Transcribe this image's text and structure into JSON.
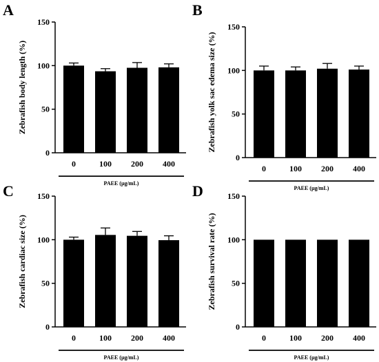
{
  "chart_data": [
    {
      "type": "bar",
      "panel_label": "A",
      "ylabel": "Zebrafish body length  (%)",
      "xlabel": "PAEE (µg/mL)",
      "categories": [
        "0",
        "100",
        "200",
        "400"
      ],
      "values": [
        100,
        93.5,
        97.5,
        98
      ],
      "errors": [
        3,
        3,
        6,
        4
      ],
      "ylim": [
        0,
        150
      ],
      "yticks": [
        0,
        50,
        100,
        150
      ],
      "colors": {
        "bar": "#000000"
      }
    },
    {
      "type": "bar",
      "panel_label": "B",
      "ylabel": "Zebrafish yolk sac edema size  (%)",
      "xlabel": "PAEE (µg/mL)",
      "categories": [
        "0",
        "100",
        "200",
        "400"
      ],
      "values": [
        100,
        100,
        102,
        101
      ],
      "errors": [
        5,
        4,
        6,
        4
      ],
      "ylim": [
        0,
        150
      ],
      "yticks": [
        0,
        50,
        100,
        150
      ],
      "colors": {
        "bar": "#000000"
      }
    },
    {
      "type": "bar",
      "panel_label": "C",
      "ylabel": "Zebrafish cardiac size (%)",
      "xlabel": "PAEE (µg/mL)",
      "categories": [
        "0",
        "100",
        "200",
        "400"
      ],
      "values": [
        100,
        105.5,
        104.5,
        99.5
      ],
      "errors": [
        3,
        8,
        5,
        5
      ],
      "ylim": [
        0,
        150
      ],
      "yticks": [
        0,
        50,
        100,
        150
      ],
      "colors": {
        "bar": "#000000"
      }
    },
    {
      "type": "bar",
      "panel_label": "D",
      "ylabel": "Zebrafish survival rate  (%)",
      "xlabel": "PAEE (µg/mL)",
      "categories": [
        "0",
        "100",
        "200",
        "400"
      ],
      "values": [
        100,
        100,
        100,
        100
      ],
      "errors": [
        0,
        0,
        0,
        0
      ],
      "ylim": [
        0,
        150
      ],
      "yticks": [
        0,
        50,
        100,
        150
      ],
      "colors": {
        "bar": "#000000"
      }
    }
  ]
}
